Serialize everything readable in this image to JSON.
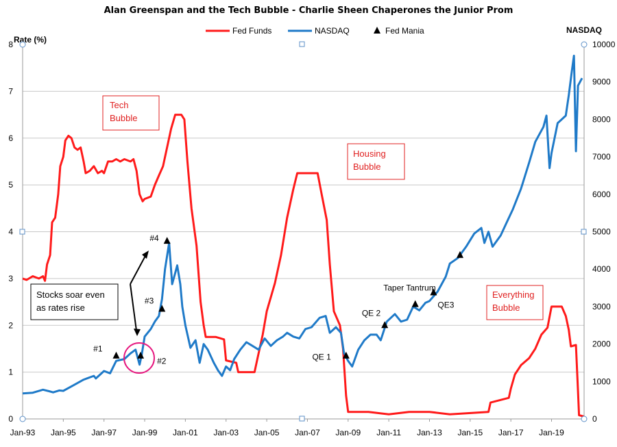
{
  "title": "Alan Greenspan and the Tech Bubble - Charlie Sheen Chaperones the Junior Prom",
  "colors": {
    "fed_funds": "#ff1a1a",
    "nasdaq": "#1f7ac8",
    "mania": "#000000",
    "circle": "#e6187f",
    "grid": "#c8c8c8"
  },
  "chart_data": {
    "type": "line",
    "title": "Alan Greenspan and the Tech Bubble - Charlie Sheen Chaperones the Junior Prom",
    "ylabel_left": "Rate (%)",
    "ylabel_right": "NASDAQ",
    "ylim_left": [
      0,
      8
    ],
    "ylim_right": [
      0,
      10000
    ],
    "xlim": [
      1993.0,
      2020.6
    ],
    "x_ticks": [
      {
        "year": 1993,
        "label": "Jan-93"
      },
      {
        "year": 1995,
        "label": "Jan-95"
      },
      {
        "year": 1997,
        "label": "Jan-97"
      },
      {
        "year": 1999,
        "label": "Jan-99"
      },
      {
        "year": 2001,
        "label": "Jan-01"
      },
      {
        "year": 2003,
        "label": "Jan-03"
      },
      {
        "year": 2005,
        "label": "Jan-05"
      },
      {
        "year": 2007,
        "label": "Jan-07"
      },
      {
        "year": 2009,
        "label": "Jan-09"
      },
      {
        "year": 2011,
        "label": "Jan-11"
      },
      {
        "year": 2013,
        "label": "Jan-13"
      },
      {
        "year": 2015,
        "label": "Jan-15"
      },
      {
        "year": 2017,
        "label": "Jan-17"
      },
      {
        "year": 2019,
        "label": "Jan-19"
      }
    ],
    "y_ticks_left": [
      "0",
      "1",
      "2",
      "3",
      "4",
      "5",
      "6",
      "7",
      "8"
    ],
    "y_ticks_right": [
      "0",
      "1000",
      "2000",
      "3000",
      "4000",
      "5000",
      "6000",
      "7000",
      "8000",
      "9000",
      "10000"
    ],
    "legend": [
      "Fed Funds",
      "NASDAQ",
      "Fed Mania"
    ],
    "legend_position": "top",
    "grid": true,
    "series": [
      {
        "name": "Fed Funds",
        "axis": "left",
        "points": [
          [
            1993.0,
            3.0
          ],
          [
            1993.2,
            2.97
          ],
          [
            1993.5,
            3.05
          ],
          [
            1993.8,
            3.0
          ],
          [
            1994.0,
            3.05
          ],
          [
            1994.1,
            2.95
          ],
          [
            1994.2,
            3.3
          ],
          [
            1994.35,
            3.5
          ],
          [
            1994.45,
            4.2
          ],
          [
            1994.6,
            4.3
          ],
          [
            1994.75,
            4.8
          ],
          [
            1994.85,
            5.4
          ],
          [
            1995.0,
            5.6
          ],
          [
            1995.1,
            5.95
          ],
          [
            1995.25,
            6.05
          ],
          [
            1995.4,
            6.0
          ],
          [
            1995.55,
            5.8
          ],
          [
            1995.7,
            5.75
          ],
          [
            1995.85,
            5.8
          ],
          [
            1996.0,
            5.5
          ],
          [
            1996.1,
            5.25
          ],
          [
            1996.3,
            5.3
          ],
          [
            1996.5,
            5.4
          ],
          [
            1996.7,
            5.25
          ],
          [
            1996.9,
            5.3
          ],
          [
            1997.0,
            5.25
          ],
          [
            1997.2,
            5.5
          ],
          [
            1997.4,
            5.5
          ],
          [
            1997.6,
            5.55
          ],
          [
            1997.8,
            5.5
          ],
          [
            1998.0,
            5.55
          ],
          [
            1998.3,
            5.5
          ],
          [
            1998.45,
            5.55
          ],
          [
            1998.6,
            5.3
          ],
          [
            1998.75,
            4.8
          ],
          [
            1998.9,
            4.65
          ],
          [
            1999.0,
            4.7
          ],
          [
            1999.3,
            4.75
          ],
          [
            1999.5,
            5.0
          ],
          [
            1999.7,
            5.2
          ],
          [
            1999.9,
            5.4
          ],
          [
            2000.1,
            5.8
          ],
          [
            2000.3,
            6.2
          ],
          [
            2000.5,
            6.5
          ],
          [
            2000.8,
            6.5
          ],
          [
            2000.95,
            6.4
          ],
          [
            2001.1,
            5.5
          ],
          [
            2001.3,
            4.5
          ],
          [
            2001.55,
            3.7
          ],
          [
            2001.75,
            2.5
          ],
          [
            2001.9,
            2.0
          ],
          [
            2002.0,
            1.75
          ],
          [
            2002.5,
            1.75
          ],
          [
            2002.9,
            1.7
          ],
          [
            2003.0,
            1.25
          ],
          [
            2003.5,
            1.2
          ],
          [
            2003.6,
            1.0
          ],
          [
            2004.4,
            1.0
          ],
          [
            2004.55,
            1.3
          ],
          [
            2004.8,
            1.8
          ],
          [
            2005.0,
            2.3
          ],
          [
            2005.4,
            2.9
          ],
          [
            2005.7,
            3.5
          ],
          [
            2006.0,
            4.3
          ],
          [
            2006.3,
            4.9
          ],
          [
            2006.5,
            5.25
          ],
          [
            2007.5,
            5.25
          ],
          [
            2007.7,
            4.8
          ],
          [
            2007.95,
            4.25
          ],
          [
            2008.1,
            3.3
          ],
          [
            2008.3,
            2.3
          ],
          [
            2008.6,
            2.0
          ],
          [
            2008.75,
            1.5
          ],
          [
            2008.9,
            0.5
          ],
          [
            2009.0,
            0.15
          ],
          [
            2010.0,
            0.15
          ],
          [
            2011.0,
            0.1
          ],
          [
            2012.0,
            0.15
          ],
          [
            2013.0,
            0.15
          ],
          [
            2014.0,
            0.1
          ],
          [
            2015.9,
            0.15
          ],
          [
            2016.0,
            0.35
          ],
          [
            2016.9,
            0.45
          ],
          [
            2017.0,
            0.65
          ],
          [
            2017.2,
            0.95
          ],
          [
            2017.5,
            1.15
          ],
          [
            2017.9,
            1.3
          ],
          [
            2018.2,
            1.5
          ],
          [
            2018.5,
            1.8
          ],
          [
            2018.8,
            1.95
          ],
          [
            2019.0,
            2.4
          ],
          [
            2019.5,
            2.4
          ],
          [
            2019.7,
            2.2
          ],
          [
            2019.85,
            1.9
          ],
          [
            2019.95,
            1.55
          ],
          [
            2020.2,
            1.58
          ],
          [
            2020.3,
            0.6
          ],
          [
            2020.35,
            0.08
          ],
          [
            2020.6,
            0.05
          ]
        ]
      },
      {
        "name": "NASDAQ",
        "axis": "right",
        "points": [
          [
            1993.0,
            680
          ],
          [
            1993.5,
            700
          ],
          [
            1994.0,
            780
          ],
          [
            1994.3,
            740
          ],
          [
            1994.5,
            710
          ],
          [
            1994.8,
            760
          ],
          [
            1995.0,
            750
          ],
          [
            1995.5,
            900
          ],
          [
            1996.0,
            1050
          ],
          [
            1996.5,
            1150
          ],
          [
            1996.6,
            1080
          ],
          [
            1997.0,
            1280
          ],
          [
            1997.3,
            1220
          ],
          [
            1997.6,
            1550
          ],
          [
            1998.0,
            1600
          ],
          [
            1998.3,
            1750
          ],
          [
            1998.55,
            1850
          ],
          [
            1998.75,
            1450
          ],
          [
            1998.85,
            1700
          ],
          [
            1999.0,
            2200
          ],
          [
            1999.3,
            2400
          ],
          [
            1999.5,
            2600
          ],
          [
            1999.7,
            2750
          ],
          [
            1999.85,
            3200
          ],
          [
            2000.0,
            4000
          ],
          [
            2000.2,
            4700
          ],
          [
            2000.35,
            3600
          ],
          [
            2000.5,
            3900
          ],
          [
            2000.6,
            4100
          ],
          [
            2000.75,
            3600
          ],
          [
            2000.85,
            3000
          ],
          [
            2001.0,
            2500
          ],
          [
            2001.25,
            1900
          ],
          [
            2001.5,
            2100
          ],
          [
            2001.7,
            1500
          ],
          [
            2001.9,
            2000
          ],
          [
            2002.1,
            1850
          ],
          [
            2002.4,
            1500
          ],
          [
            2002.6,
            1300
          ],
          [
            2002.8,
            1150
          ],
          [
            2003.0,
            1400
          ],
          [
            2003.2,
            1300
          ],
          [
            2003.4,
            1600
          ],
          [
            2003.7,
            1850
          ],
          [
            2004.0,
            2050
          ],
          [
            2004.3,
            1950
          ],
          [
            2004.6,
            1850
          ],
          [
            2004.9,
            2150
          ],
          [
            2005.2,
            1950
          ],
          [
            2005.5,
            2100
          ],
          [
            2005.8,
            2200
          ],
          [
            2006.0,
            2300
          ],
          [
            2006.3,
            2200
          ],
          [
            2006.6,
            2150
          ],
          [
            2006.9,
            2400
          ],
          [
            2007.2,
            2450
          ],
          [
            2007.6,
            2700
          ],
          [
            2007.9,
            2750
          ],
          [
            2008.1,
            2300
          ],
          [
            2008.4,
            2450
          ],
          [
            2008.65,
            2300
          ],
          [
            2008.8,
            1750
          ],
          [
            2009.0,
            1550
          ],
          [
            2009.2,
            1400
          ],
          [
            2009.5,
            1850
          ],
          [
            2009.8,
            2100
          ],
          [
            2010.1,
            2250
          ],
          [
            2010.4,
            2250
          ],
          [
            2010.6,
            2100
          ],
          [
            2010.9,
            2600
          ],
          [
            2011.3,
            2800
          ],
          [
            2011.6,
            2600
          ],
          [
            2011.9,
            2650
          ],
          [
            2012.2,
            3000
          ],
          [
            2012.5,
            2900
          ],
          [
            2012.8,
            3100
          ],
          [
            2013.0,
            3150
          ],
          [
            2013.4,
            3400
          ],
          [
            2013.8,
            3800
          ],
          [
            2014.0,
            4150
          ],
          [
            2014.4,
            4300
          ],
          [
            2014.8,
            4600
          ],
          [
            2015.2,
            4950
          ],
          [
            2015.55,
            5100
          ],
          [
            2015.7,
            4700
          ],
          [
            2015.9,
            5000
          ],
          [
            2016.1,
            4600
          ],
          [
            2016.5,
            4900
          ],
          [
            2016.8,
            5250
          ],
          [
            2017.1,
            5600
          ],
          [
            2017.5,
            6150
          ],
          [
            2017.9,
            6850
          ],
          [
            2018.2,
            7400
          ],
          [
            2018.6,
            7800
          ],
          [
            2018.75,
            8100
          ],
          [
            2018.9,
            6700
          ],
          [
            2019.0,
            7100
          ],
          [
            2019.3,
            7900
          ],
          [
            2019.5,
            8000
          ],
          [
            2019.7,
            8100
          ],
          [
            2019.85,
            8650
          ],
          [
            2020.0,
            9300
          ],
          [
            2020.1,
            9700
          ],
          [
            2020.2,
            7150
          ],
          [
            2020.3,
            8900
          ],
          [
            2020.5,
            9100
          ]
        ]
      }
    ],
    "mania_points": [
      {
        "label": "#1",
        "x": 1997.6,
        "y": 1.35
      },
      {
        "label": "#2",
        "x": 1998.8,
        "y": 1.35
      },
      {
        "label": "#3",
        "x": 1999.85,
        "y": 2.35
      },
      {
        "label": "#4",
        "x": 2000.1,
        "y": 3.8
      },
      {
        "label": "QE 1",
        "x": 2008.9,
        "y": 1.35
      },
      {
        "label": "QE 2",
        "x": 2010.8,
        "y": 2.0
      },
      {
        "label": "Taper Tantrum",
        "x": 2012.3,
        "y": 2.45
      },
      {
        "label": "QE3",
        "x": 2013.2,
        "y": 2.7
      },
      {
        "label": "",
        "x": 2014.5,
        "y": 3.5
      }
    ],
    "annotations": {
      "tech_bubble": "Tech\nBubble",
      "housing_bubble": "Housing\nBubble",
      "everything_bubble": "Everything\nBubble",
      "stocks_soar": "Stocks soar even\nas rates rise"
    }
  }
}
